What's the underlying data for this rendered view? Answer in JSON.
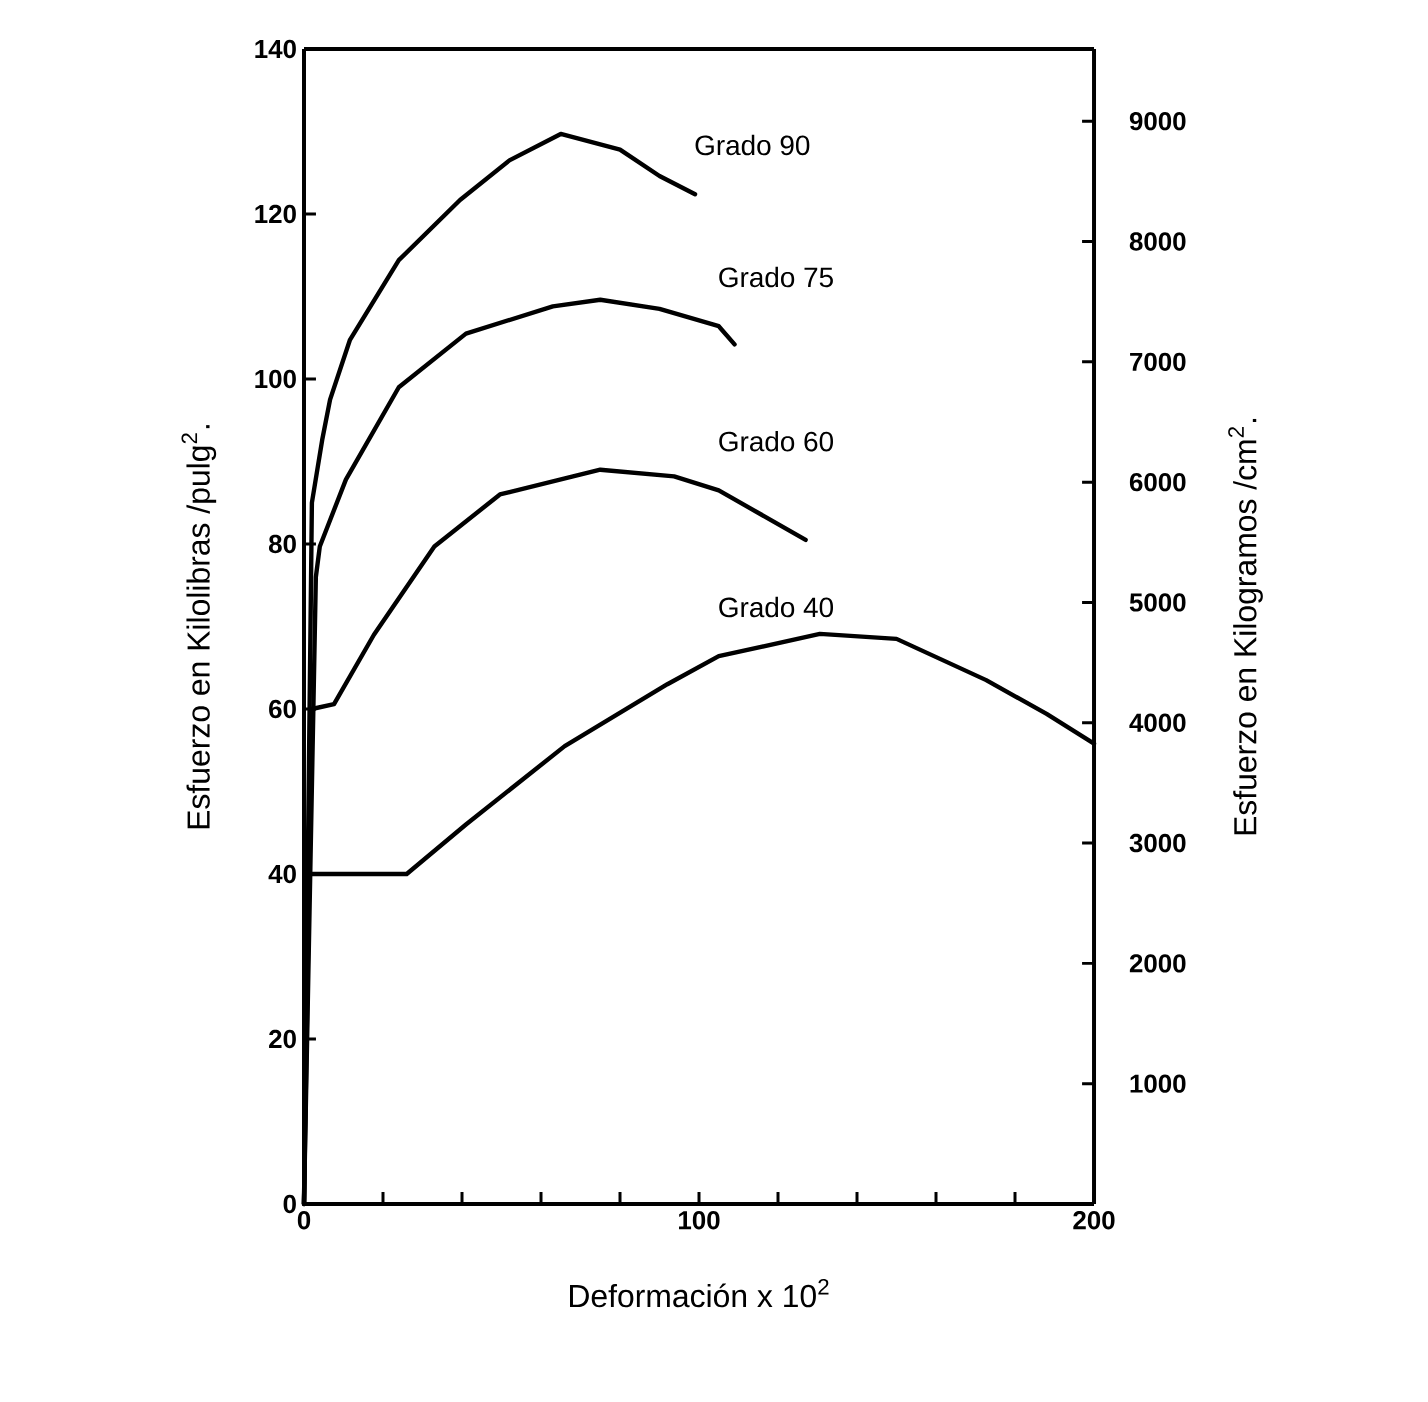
{
  "chart_data": {
    "type": "line",
    "xlabel": "Deformación x 10$^{2}$",
    "ylabel": "Esfuerzo en Kilolibras /pulg$^{2}$.",
    "y2label": "Esfuerzo en Kilogramos /cm$^{2}$.",
    "xlim": [
      0,
      200
    ],
    "xticks": [
      0,
      {
        "value": 20,
        "label": null
      },
      {
        "value": 40,
        "label": null
      },
      {
        "value": 60,
        "label": null
      },
      {
        "value": 80,
        "label": null
      },
      100,
      {
        "value": 120,
        "label": null
      },
      {
        "value": 140,
        "label": null
      },
      {
        "value": 160,
        "label": null
      },
      {
        "value": 180,
        "label": null
      },
      200
    ],
    "ylim": [
      0,
      140
    ],
    "yticks": [
      0,
      20,
      40,
      60,
      80,
      100,
      120,
      140
    ],
    "y2lim": [
      0,
      9600
    ],
    "y2ticks": [
      1000,
      2000,
      3000,
      4000,
      5000,
      6000,
      7000,
      8000,
      9000
    ],
    "grid": false,
    "marker": "none",
    "line_style": "solid",
    "series": [
      {
        "name": "Grado 90",
        "color": "#000000",
        "x": [
          0,
          2,
          4.6,
          6.6,
          11.6,
          24,
          39.5,
          52,
          65,
          80,
          90,
          99
        ],
        "values": [
          0,
          85,
          92.6,
          97.5,
          104.7,
          114.4,
          121.7,
          126.5,
          129.7,
          127.8,
          124.6,
          122.4
        ]
      },
      {
        "name": "Grado 75",
        "color": "#000000",
        "x": [
          0,
          3,
          4,
          10.6,
          24,
          41,
          63,
          75,
          90,
          105,
          109
        ],
        "values": [
          0,
          76,
          79.7,
          87.8,
          99,
          105.5,
          108.8,
          109.6,
          108.5,
          106.4,
          104.2
        ]
      },
      {
        "name": "Grado 60",
        "color": "#000000",
        "x": [
          0,
          2,
          7.6,
          17.7,
          33,
          49.6,
          75,
          93.7,
          105,
          127
        ],
        "values": [
          0,
          60,
          60.6,
          69,
          79.7,
          86,
          89,
          88.2,
          86.5,
          80.5
        ]
      },
      {
        "name": "Grado 40",
        "color": "#000000",
        "x": [
          0,
          1,
          26,
          41,
          66,
          92,
          105,
          130.6,
          150,
          172.7,
          188,
          200
        ],
        "values": [
          0,
          40,
          40,
          46,
          55.5,
          63,
          66.4,
          69.1,
          68.5,
          63.5,
          59.4,
          55.8
        ]
      }
    ]
  }
}
